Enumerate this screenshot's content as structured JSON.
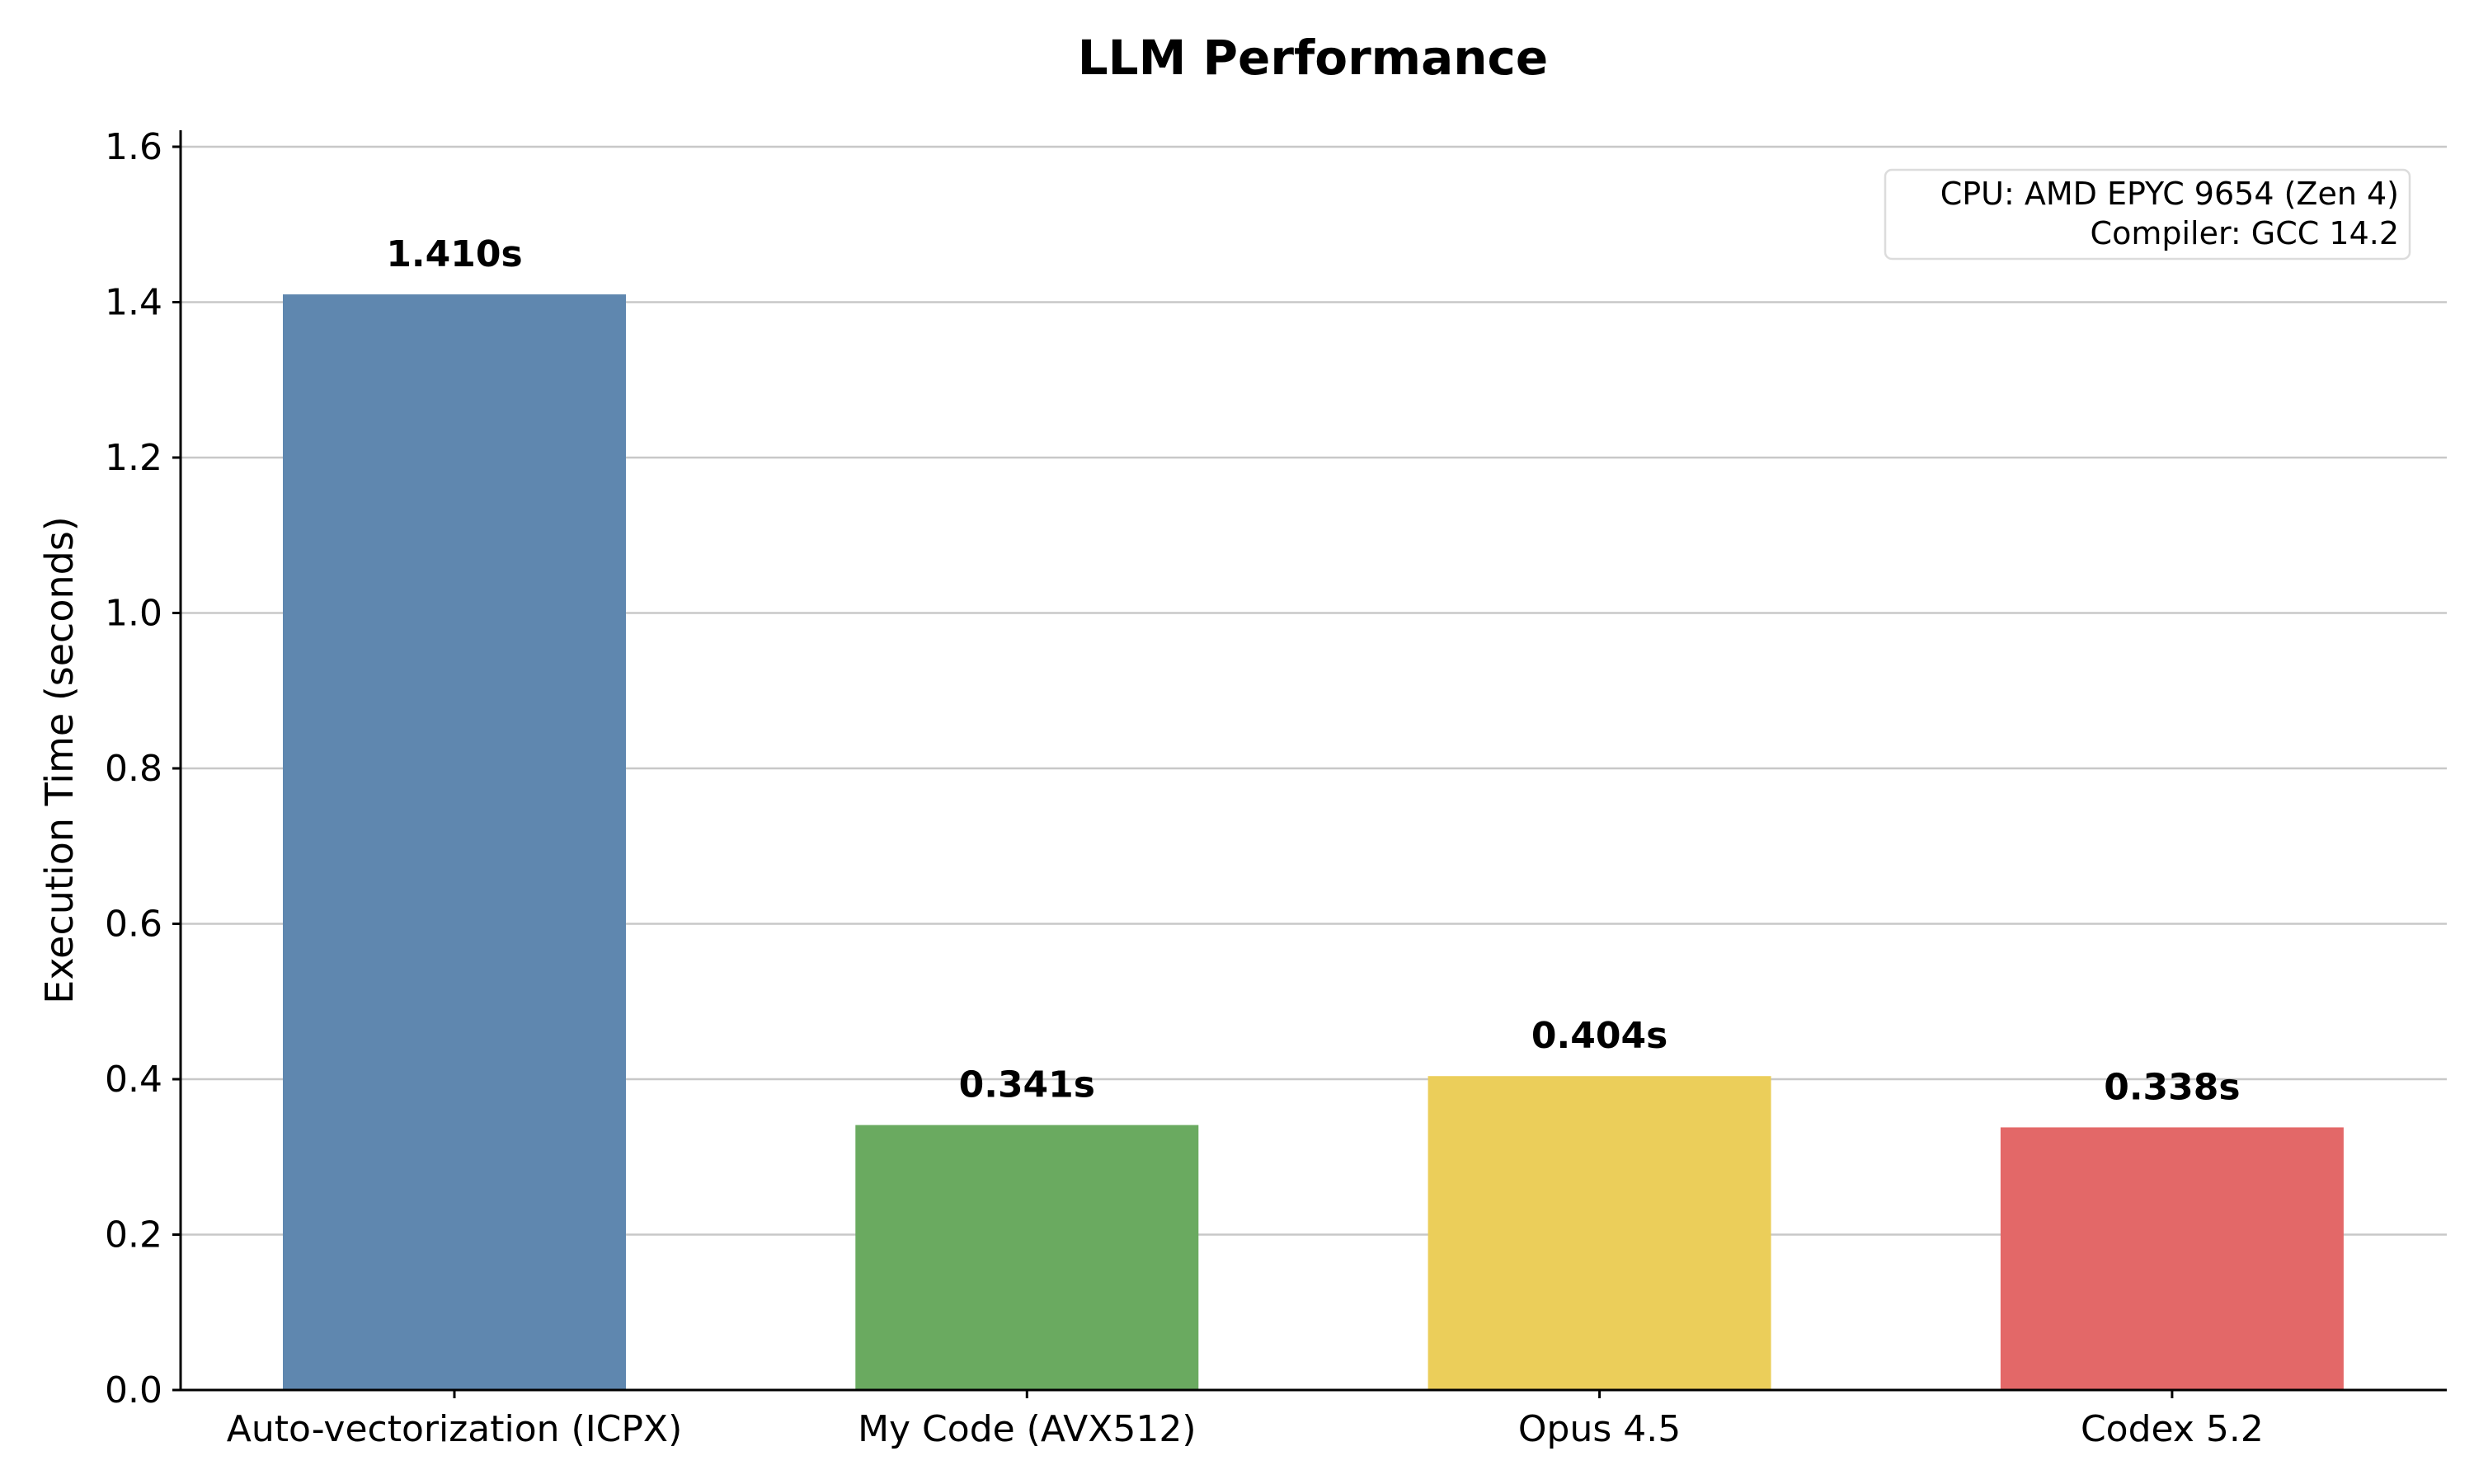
{
  "chart_data": {
    "type": "bar",
    "title": "LLM Performance",
    "xlabel": "",
    "ylabel": "Execution Time (seconds)",
    "ylim": [
      0,
      1.6
    ],
    "yticks": [
      "0.0",
      "0.2",
      "0.4",
      "0.6",
      "0.8",
      "1.0",
      "1.2",
      "1.4",
      "1.6"
    ],
    "ytick_values": [
      0,
      0.2,
      0.4,
      0.6,
      0.8,
      1.0,
      1.2,
      1.4,
      1.6
    ],
    "grid": "horizontal",
    "categories": [
      "Auto-vectorization (ICPX)",
      "My Code (AVX512)",
      "Opus 4.5",
      "Codex 5.2"
    ],
    "values": [
      1.41,
      0.341,
      0.404,
      0.338
    ],
    "value_labels": [
      "1.410s",
      "0.341s",
      "0.404s",
      "0.338s"
    ],
    "colors": [
      "#5f87af",
      "#6aaa60",
      "#ebce5a",
      "#e36868"
    ],
    "annotation": {
      "placement": "top-right",
      "lines": [
        "CPU: AMD EPYC 9654 (Zen 4)",
        "Compiler: GCC 14.2"
      ]
    }
  }
}
